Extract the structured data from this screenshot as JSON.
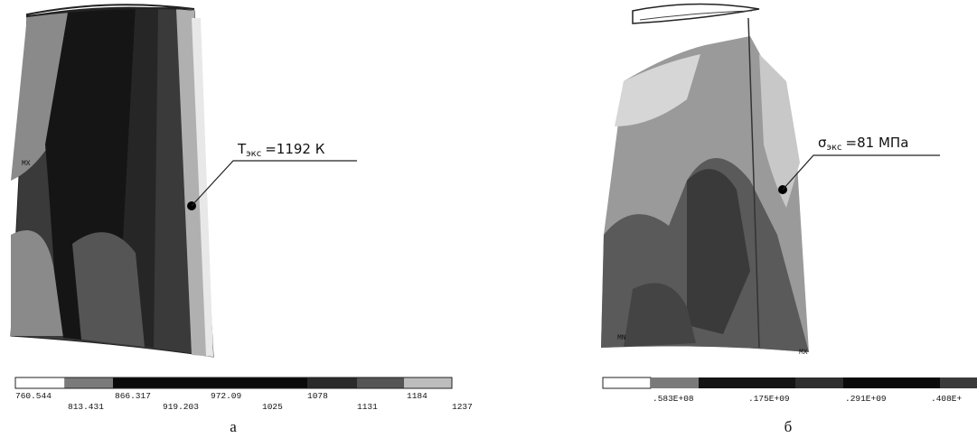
{
  "panels": [
    {
      "annotation": {
        "symbol": "T",
        "subscript": "экс",
        "text": "=1192 К"
      },
      "markers": [
        "MX"
      ],
      "legend_labels": [
        "760.544",
        "813.431",
        "866.317",
        "919.203",
        "972.09",
        "1025",
        "1078",
        "1131",
        "1184",
        "1237"
      ],
      "caption": "а"
    },
    {
      "annotation": {
        "symbol": "σ",
        "subscript": "экс",
        "text": "=81 МПа"
      },
      "markers": [
        "MN",
        "MX"
      ],
      "legend_labels": [
        ".583E+08",
        ".175E+09",
        ".291E+09",
        ".408E+"
      ],
      "caption": "б"
    }
  ]
}
